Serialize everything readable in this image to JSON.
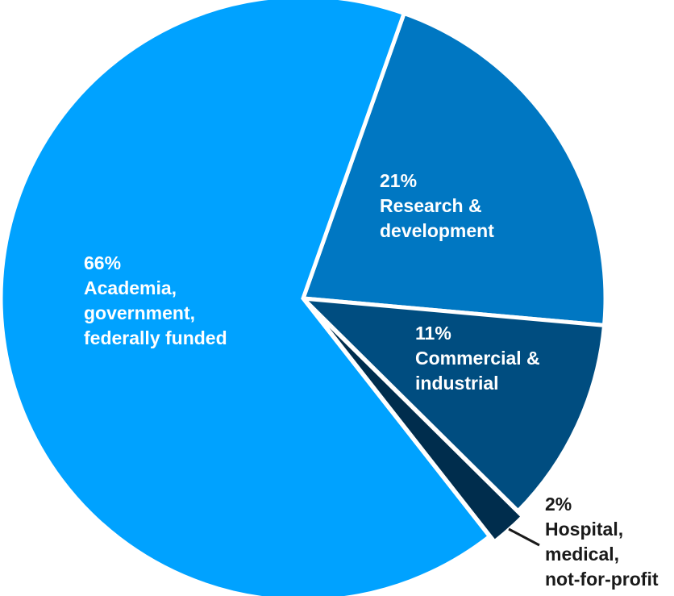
{
  "chart_data": {
    "type": "pie",
    "start_angle_deg": 19.5,
    "direction": "clockwise",
    "slices": [
      {
        "pct": "21%",
        "value": 21,
        "lines": [
          "Research &",
          "development"
        ],
        "color": "#0077c2"
      },
      {
        "pct": "11%",
        "value": 11,
        "lines": [
          "Commercial &",
          "industrial"
        ],
        "color": "#004d80"
      },
      {
        "pct": "2%",
        "value": 2,
        "lines": [
          "Hospital,",
          "medical,",
          "not-for-profit"
        ],
        "color": "#002d4d"
      },
      {
        "pct": "66%",
        "value": 66,
        "lines": [
          "Academia,",
          "government,",
          "federally funded"
        ],
        "color": "#00a2ff"
      }
    ]
  }
}
